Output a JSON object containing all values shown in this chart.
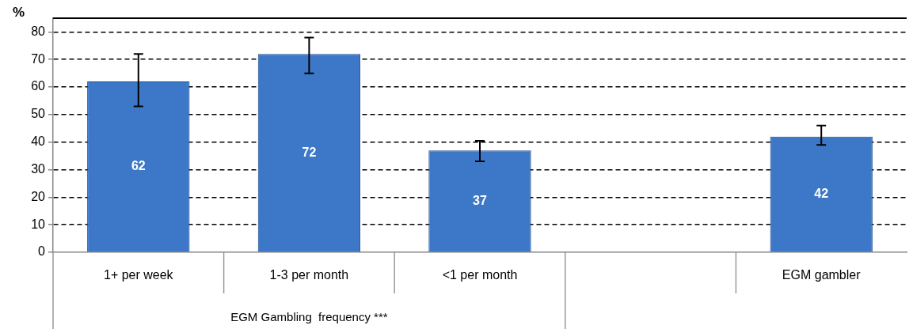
{
  "chart_data": {
    "type": "bar",
    "ylabel": "%",
    "categories": [
      "1+ per week",
      "1-3 per month",
      "<1 per month",
      null,
      "EGM gambler"
    ],
    "values": [
      62,
      72,
      37,
      null,
      42
    ],
    "errors": [
      [
        53,
        72
      ],
      [
        65,
        78
      ],
      [
        33,
        40.5
      ],
      null,
      [
        39,
        46
      ]
    ],
    "color": "#3d78c8",
    "ylim": [
      0,
      85
    ],
    "yticks": [
      0,
      10,
      20,
      30,
      40,
      50,
      60,
      70,
      80
    ],
    "grid": "y",
    "data_labels": true,
    "annotations": [
      "EGM Gambling  frequency ***"
    ]
  }
}
